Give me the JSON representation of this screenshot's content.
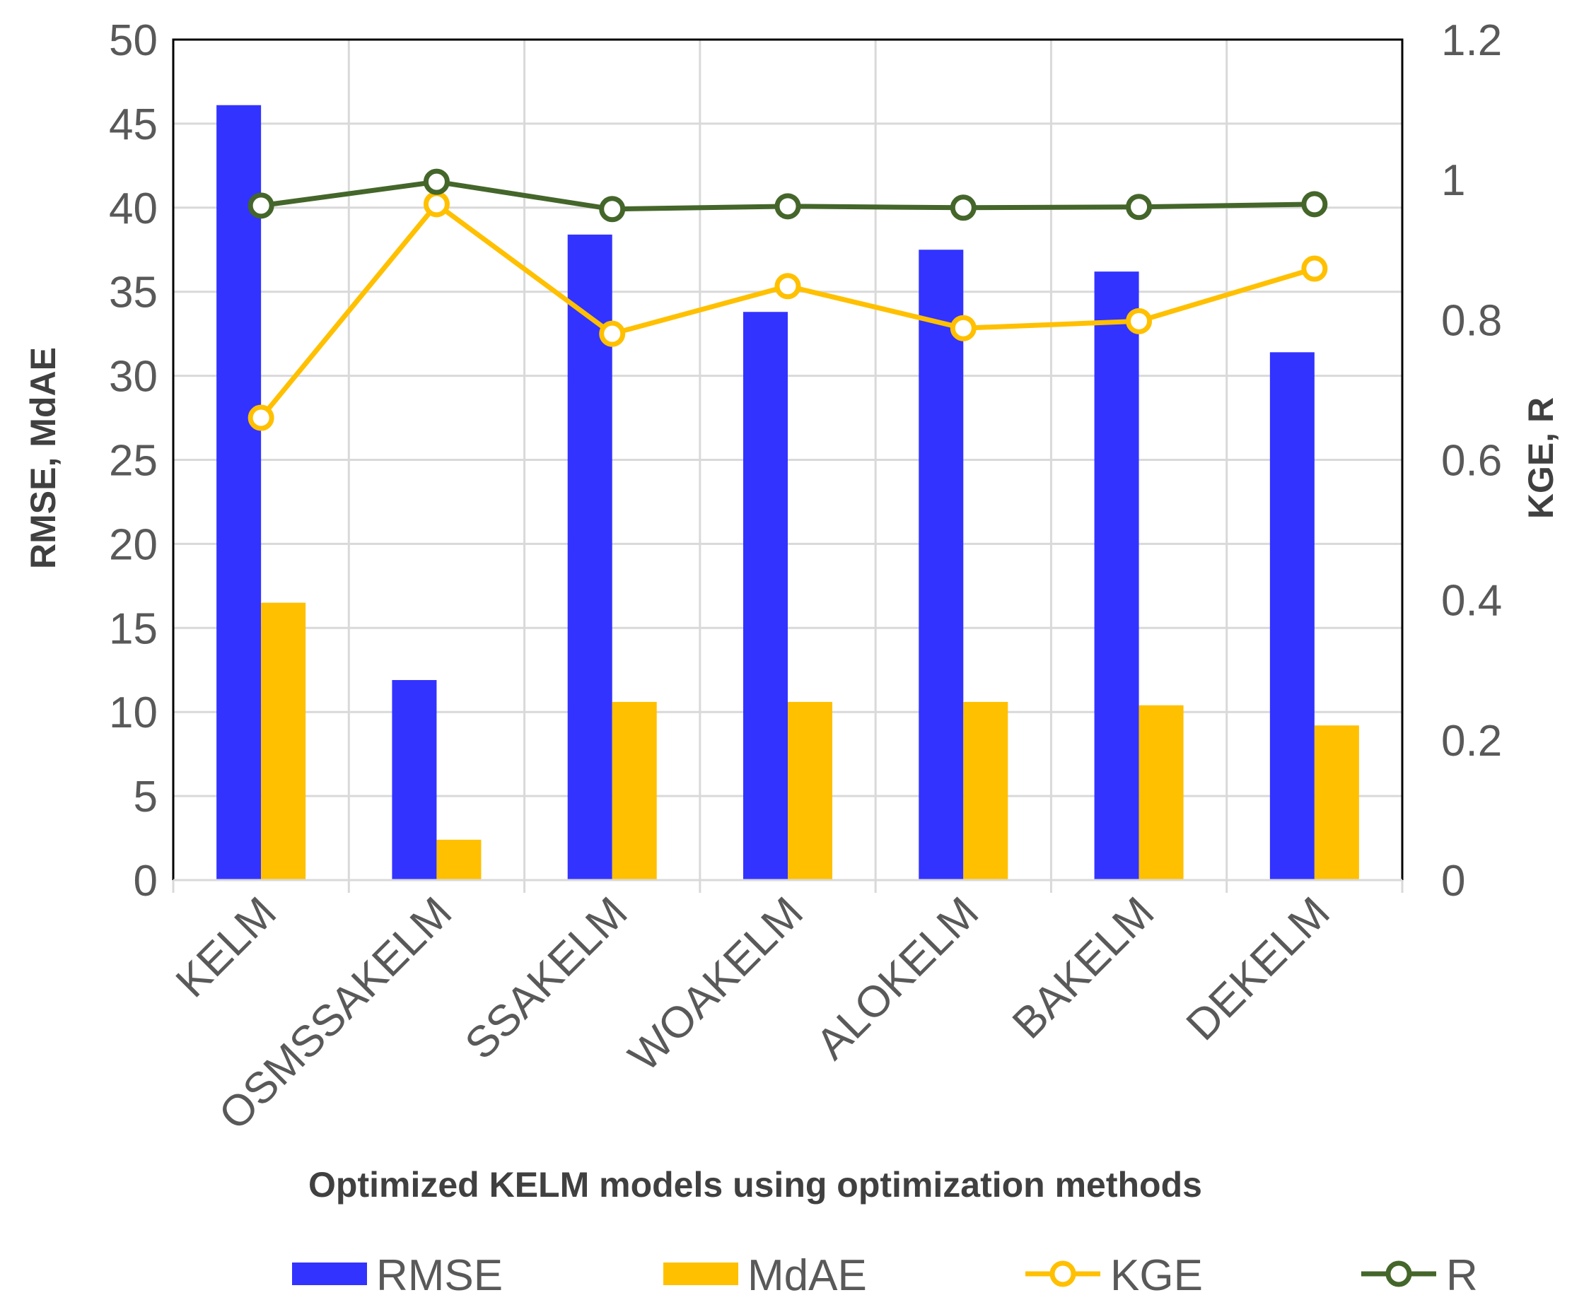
{
  "chart_data": {
    "type": "bar",
    "categories": [
      "KELM",
      "OSMSSAKELM",
      "SSAKELM",
      "WOAKELM",
      "ALOKELM",
      "BAKELM",
      "DEKELM"
    ],
    "series": [
      {
        "name": "RMSE",
        "kind": "bar",
        "axis": "left",
        "color": "#3333ff",
        "values": [
          46.1,
          11.9,
          38.4,
          33.8,
          37.5,
          36.2,
          31.4
        ]
      },
      {
        "name": "MdAE",
        "kind": "bar",
        "axis": "left",
        "color": "#ffc000",
        "values": [
          16.5,
          2.4,
          10.6,
          10.6,
          10.6,
          10.4,
          9.2
        ]
      },
      {
        "name": "KGE",
        "kind": "line",
        "axis": "right",
        "color": "#ffc000",
        "values": [
          0.66,
          0.965,
          0.78,
          0.848,
          0.788,
          0.798,
          0.873
        ]
      },
      {
        "name": "R",
        "kind": "line",
        "axis": "right",
        "color": "#44662a",
        "values": [
          0.963,
          0.997,
          0.958,
          0.962,
          0.96,
          0.961,
          0.965
        ]
      }
    ],
    "y_left": {
      "label": "RMSE, MdAE",
      "min": 0,
      "max": 50,
      "ticks": [
        0,
        5,
        10,
        15,
        20,
        25,
        30,
        35,
        40,
        45,
        50
      ],
      "tick_labels": [
        "0",
        "5",
        "10",
        "15",
        "20",
        "25",
        "30",
        "35",
        "40",
        "45",
        "50"
      ]
    },
    "y_right": {
      "label": "KGE, R",
      "min": 0,
      "max": 1.2,
      "ticks": [
        0,
        0.2,
        0.4,
        0.6,
        0.8,
        1,
        1.2
      ],
      "tick_labels": [
        "0",
        "0.2",
        "0.4",
        "0.6",
        "0.8",
        "1",
        "1.2"
      ]
    },
    "xlabel": "Optimized KELM models using optimization methods",
    "grid": true,
    "legend_position": "bottom"
  }
}
